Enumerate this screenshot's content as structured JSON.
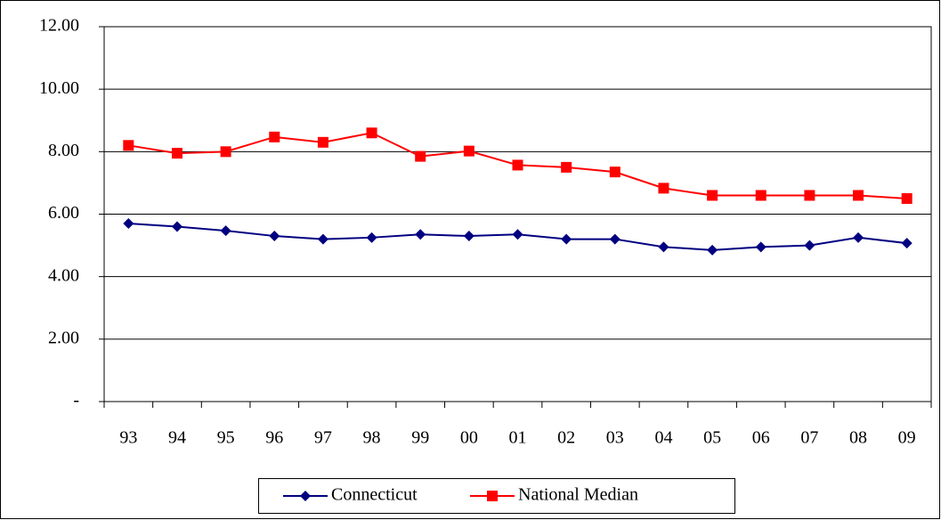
{
  "chart_data": {
    "type": "line",
    "categories": [
      "93",
      "94",
      "95",
      "96",
      "97",
      "98",
      "99",
      "00",
      "01",
      "02",
      "03",
      "04",
      "05",
      "06",
      "07",
      "08",
      "09"
    ],
    "series": [
      {
        "name": "Connecticut",
        "color": "#000080",
        "marker": "diamond",
        "values": [
          5.7,
          5.6,
          5.47,
          5.3,
          5.2,
          5.25,
          5.35,
          5.3,
          5.35,
          5.2,
          5.2,
          4.95,
          4.85,
          4.95,
          5.0,
          5.25,
          5.07
        ]
      },
      {
        "name": "National Median",
        "color": "#ff0000",
        "marker": "square",
        "values": [
          8.2,
          7.95,
          8.0,
          8.47,
          8.3,
          8.6,
          7.85,
          8.02,
          7.57,
          7.5,
          7.35,
          6.83,
          6.6,
          6.6,
          6.6,
          6.6,
          6.5
        ]
      }
    ],
    "ylim": [
      0,
      12
    ],
    "yticks": [
      {
        "value": 0,
        "label": "-"
      },
      {
        "value": 2,
        "label": "2.00"
      },
      {
        "value": 4,
        "label": "4.00"
      },
      {
        "value": 6,
        "label": "6.00"
      },
      {
        "value": 8,
        "label": "8.00"
      },
      {
        "value": 10,
        "label": "10.00"
      },
      {
        "value": 12,
        "label": "12.00"
      }
    ],
    "grid": true,
    "legend": "bottom"
  }
}
